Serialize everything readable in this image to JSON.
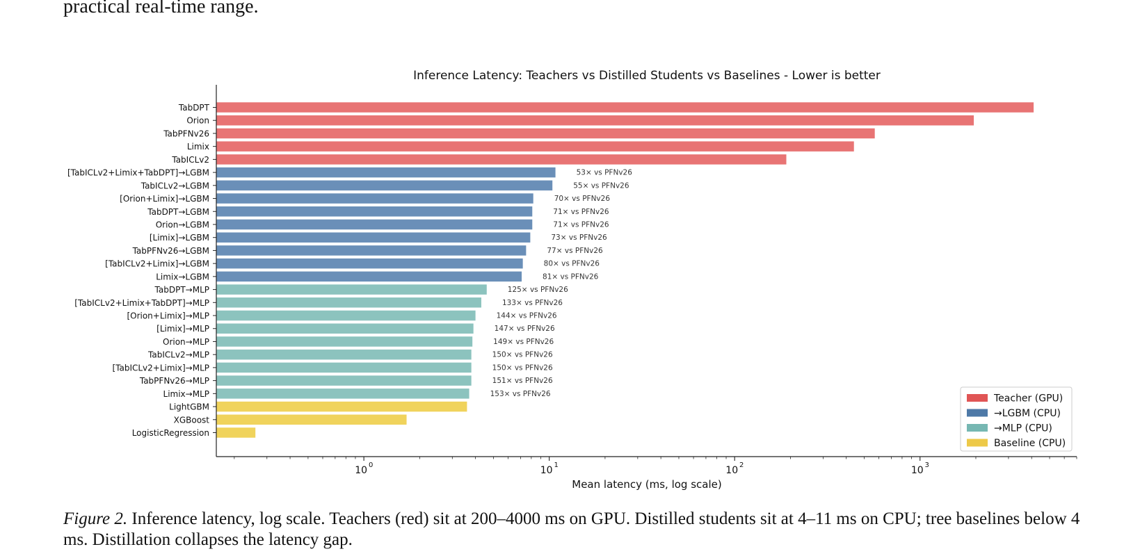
{
  "page": {
    "top_text": "practical real-time range.",
    "caption": {
      "label": "Figure 2.",
      "text": "Inference latency, log scale. Teachers (red) sit at 200–4000 ms on GPU. Distilled students sit at 4–11 ms on CPU; tree baselines below 4 ms. Distillation collapses the latency gap."
    }
  },
  "chart_data": {
    "type": "bar",
    "orientation": "horizontal",
    "title": "Inference Latency: Teachers vs Distilled Students vs Baselines - Lower is better",
    "xlabel": "Mean latency (ms, log scale)",
    "ylabel": "",
    "x_scale": "log",
    "xlim": [
      0.16,
      7000
    ],
    "x_major_ticks": [
      {
        "value": 1,
        "base": "10",
        "exp": "0"
      },
      {
        "value": 10,
        "base": "10",
        "exp": "1"
      },
      {
        "value": 100,
        "base": "10",
        "exp": "2"
      },
      {
        "value": 1000,
        "base": "10",
        "exp": "3"
      }
    ],
    "grid": false,
    "legend_position": "bottom-right",
    "legend": [
      {
        "label": "Teacher (GPU)",
        "color": "#e05555"
      },
      {
        "label": "→LGBM (CPU)",
        "color": "#4e79a7"
      },
      {
        "label": "→MLP (CPU)",
        "color": "#76b7b2"
      },
      {
        "label": "Baseline (CPU)",
        "color": "#edc948"
      }
    ],
    "group_colors": {
      "teacher": "#e87474",
      "lgbm": "#6a8fb8",
      "mlp": "#8cc3be",
      "baseline": "#f0d35c"
    },
    "bars": [
      {
        "label": "TabDPT",
        "value": 4100,
        "group": "teacher",
        "annotation": ""
      },
      {
        "label": "Orion",
        "value": 1950,
        "group": "teacher",
        "annotation": ""
      },
      {
        "label": "TabPFNv26",
        "value": 570,
        "group": "teacher",
        "annotation": ""
      },
      {
        "label": "Limix",
        "value": 440,
        "group": "teacher",
        "annotation": ""
      },
      {
        "label": "TabICLv2",
        "value": 190,
        "group": "teacher",
        "annotation": ""
      },
      {
        "label": "[TabICLv2+Limix+TabDPT]→LGBM",
        "value": 10.8,
        "group": "lgbm",
        "annotation": "53× vs PFNv26"
      },
      {
        "label": "TabICLv2→LGBM",
        "value": 10.4,
        "group": "lgbm",
        "annotation": "55× vs PFNv26"
      },
      {
        "label": "[Orion+Limix]→LGBM",
        "value": 8.2,
        "group": "lgbm",
        "annotation": "70× vs PFNv26"
      },
      {
        "label": "TabDPT→LGBM",
        "value": 8.1,
        "group": "lgbm",
        "annotation": "71× vs PFNv26"
      },
      {
        "label": "Orion→LGBM",
        "value": 8.1,
        "group": "lgbm",
        "annotation": "71× vs PFNv26"
      },
      {
        "label": "[Limix]→LGBM",
        "value": 7.9,
        "group": "lgbm",
        "annotation": "73× vs PFNv26"
      },
      {
        "label": "TabPFNv26→LGBM",
        "value": 7.5,
        "group": "lgbm",
        "annotation": "77× vs PFNv26"
      },
      {
        "label": "[TabICLv2+Limix]→LGBM",
        "value": 7.2,
        "group": "lgbm",
        "annotation": "80× vs PFNv26"
      },
      {
        "label": "Limix→LGBM",
        "value": 7.1,
        "group": "lgbm",
        "annotation": "81× vs PFNv26"
      },
      {
        "label": "TabDPT→MLP",
        "value": 4.6,
        "group": "mlp",
        "annotation": "125× vs PFNv26"
      },
      {
        "label": "[TabICLv2+Limix+TabDPT]→MLP",
        "value": 4.3,
        "group": "mlp",
        "annotation": "133× vs PFNv26"
      },
      {
        "label": "[Orion+Limix]→MLP",
        "value": 4.0,
        "group": "mlp",
        "annotation": "144× vs PFNv26"
      },
      {
        "label": "[Limix]→MLP",
        "value": 3.9,
        "group": "mlp",
        "annotation": "147× vs PFNv26"
      },
      {
        "label": "Orion→MLP",
        "value": 3.85,
        "group": "mlp",
        "annotation": "149× vs PFNv26"
      },
      {
        "label": "TabICLv2→MLP",
        "value": 3.8,
        "group": "mlp",
        "annotation": "150× vs PFNv26"
      },
      {
        "label": "[TabICLv2+Limix]→MLP",
        "value": 3.8,
        "group": "mlp",
        "annotation": "150× vs PFNv26"
      },
      {
        "label": "TabPFNv26→MLP",
        "value": 3.8,
        "group": "mlp",
        "annotation": "151× vs PFNv26"
      },
      {
        "label": "Limix→MLP",
        "value": 3.7,
        "group": "mlp",
        "annotation": "153× vs PFNv26"
      },
      {
        "label": "LightGBM",
        "value": 3.6,
        "group": "baseline",
        "annotation": ""
      },
      {
        "label": "XGBoost",
        "value": 1.7,
        "group": "baseline",
        "annotation": ""
      },
      {
        "label": "LogisticRegression",
        "value": 0.26,
        "group": "baseline",
        "annotation": ""
      }
    ]
  }
}
